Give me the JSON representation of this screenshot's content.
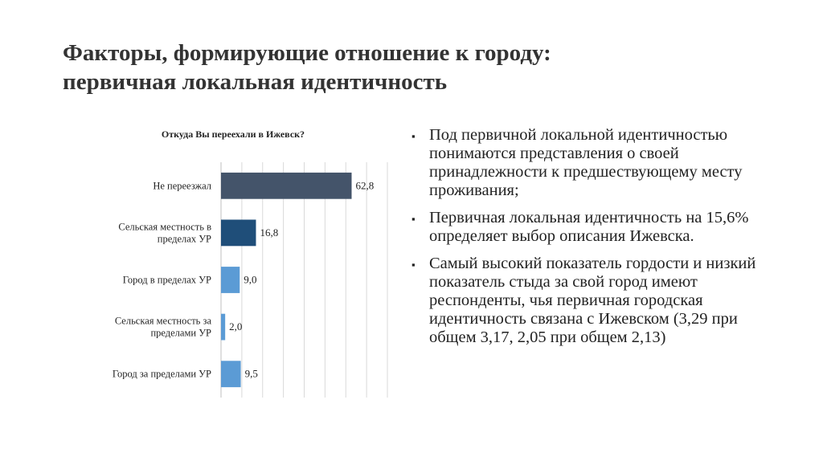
{
  "title": {
    "line1": "Факторы, формирующие отношение к городу:",
    "line2": "первичная локальная идентичность"
  },
  "chart_data": {
    "type": "bar",
    "orientation": "horizontal",
    "title": "Откуда Вы переехали в Ижевск?",
    "categories": [
      [
        "Не переезжал"
      ],
      [
        "Сельская местность в",
        "пределах УР"
      ],
      [
        "Город в пределах УР"
      ],
      [
        "Сельская местность за",
        "пределами УР"
      ],
      [
        "Город за пределами УР"
      ]
    ],
    "values": [
      62.8,
      16.8,
      9.0,
      2.0,
      9.5
    ],
    "value_labels": [
      "62,8",
      "16,8",
      "9,0",
      "2,0",
      "9,5"
    ],
    "colors": [
      "#44546a",
      "#1f4e79",
      "#5b9bd5",
      "#5b9bd5",
      "#5b9bd5"
    ],
    "xlim": [
      0,
      80
    ],
    "grid": true,
    "legend": "none",
    "xlabel": "",
    "ylabel": ""
  },
  "bullets": [
    "Под первичной локальной идентичностью понимаются представления о своей принадлежности к предшествующему месту проживания;",
    "Первичная локальная идентичность на 15,6% определяет выбор описания Ижевска.",
    "Самый высокий показатель гордости и низкий показатель стыда за свой город имеют респонденты, чья первичная городская идентичность связана с Ижевском (3,29 при общем 3,17, 2,05 при общем 2,13)"
  ],
  "bullet_symbol": "▪"
}
